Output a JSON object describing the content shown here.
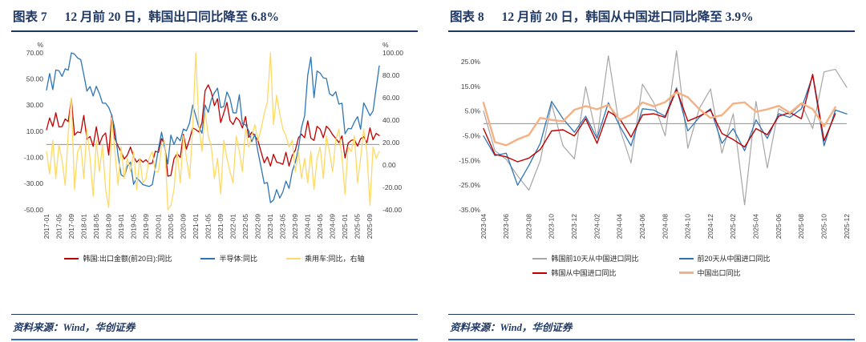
{
  "theme": {
    "title_color": "#1F3864",
    "rule_color": "#1F3864",
    "bottom_rule_color": "#2F6EB5"
  },
  "figures": [
    {
      "label": "图表 7",
      "title": "12 月前 20 日，韩国出口同比降至 6.8%",
      "source": "资料来源：Wind，华创证券"
    },
    {
      "label": "图表 8",
      "title": "12 月前 20 日，韩国从中国进口同比降至 3.9%",
      "source": "资料来源：Wind，华创证券"
    }
  ],
  "chart_data": [
    {
      "type": "line",
      "title": "12月前20日，韩国出口同比降至6.8%",
      "grid": false,
      "legend_position": "bottom",
      "ylabel_left": "%",
      "ylabel_right": "%",
      "ylim_left": [
        -50,
        70
      ],
      "yticks_left": [
        70,
        50,
        30,
        10,
        -10,
        -30,
        -50
      ],
      "ylim_right": [
        -40,
        100
      ],
      "yticks_right": [
        100,
        80,
        60,
        40,
        20,
        0,
        -20,
        -40
      ],
      "ytick_format": "2dp",
      "x_tick_step": 4,
      "x_tick_labels": [
        "2017-01",
        "2017-05",
        "2017-09",
        "2018-01",
        "2018-05",
        "2018-09",
        "2019-01",
        "2019-05",
        "2019-09",
        "2020-01",
        "2020-05",
        "2020-09",
        "2021-01",
        "2021-05",
        "2021-09",
        "2022-01",
        "2022-05",
        "2022-09",
        "2023-01",
        "2023-05",
        "2023-09",
        "2024-01",
        "2024-05",
        "2024-09",
        "2025-01",
        "2025-05",
        "2025-09"
      ],
      "series": [
        {
          "name": "韩国:出口金额(前20日):同比",
          "color": "#C00000",
          "axis": "left",
          "width": 1.3,
          "values": [
            11.2,
            20.2,
            13.7,
            24.2,
            13.4,
            13.7,
            19.5,
            17.4,
            35.0,
            7.1,
            9.6,
            8.9,
            22.2,
            4.0,
            6.1,
            -1.5,
            13.5,
            -0.1,
            6.2,
            8.7,
            -8.2,
            22.7,
            4.5,
            -1.2,
            -5.8,
            -11.1,
            -8.2,
            -2.0,
            -9.4,
            -13.5,
            -11.0,
            -13.6,
            -11.7,
            -14.7,
            -14.3,
            -5.2,
            -6.1,
            4.5,
            -0.2,
            -24.3,
            -23.7,
            -10.9,
            -7.0,
            -9.9,
            7.7,
            -3.6,
            4.0,
            12.6,
            11.4,
            9.5,
            16.6,
            41.1,
            45.6,
            39.8,
            29.6,
            34.9,
            16.7,
            24.0,
            32.1,
            18.3,
            15.2,
            20.6,
            18.2,
            12.6,
            21.3,
            5.4,
            9.4,
            6.6,
            2.8,
            -5.7,
            -14.0,
            -9.5,
            -16.6,
            -7.5,
            -13.6,
            -14.2,
            -15.2,
            -6.0,
            -16.5,
            -8.4,
            -4.4,
            5.1,
            7.8,
            5.1,
            18.0,
            4.8,
            3.1,
            13.8,
            11.7,
            5.1,
            13.9,
            11.4,
            7.5,
            4.6,
            1.4,
            6.6,
            -10.3,
            1.0,
            3.1,
            3.7,
            -1.3,
            4.3,
            5.9,
            1.3,
            12.7,
            3.6,
            8.4,
            6.8
          ]
        },
        {
          "name": "半导体:同比",
          "color": "#2E75B6",
          "axis": "left",
          "width": 1.3,
          "values": [
            41.6,
            54.2,
            41.9,
            56.9,
            56.4,
            52.0,
            57.8,
            56.8,
            70.0,
            69.1,
            66.1,
            64.8,
            53.4,
            40.8,
            44.2,
            37.0,
            44.5,
            39.0,
            31.6,
            31.5,
            28.3,
            22.2,
            11.6,
            -8.3,
            -23.3,
            -24.8,
            -16.6,
            -13.5,
            -30.5,
            -25.5,
            -28.1,
            -30.7,
            -31.5,
            -32.1,
            -30.8,
            -17.7,
            -3.4,
            9.4,
            -2.7,
            -14.9,
            7.1,
            0.0,
            5.6,
            2.8,
            11.8,
            10.4,
            16.4,
            30.0,
            21.7,
            13.2,
            8.6,
            30.2,
            24.5,
            34.4,
            39.6,
            43.0,
            28.2,
            28.9,
            40.1,
            35.1,
            24.2,
            24.0,
            38.0,
            15.8,
            15.0,
            10.7,
            2.1,
            7.8,
            -5.7,
            -17.4,
            -29.8,
            -29.1,
            -44.5,
            -42.5,
            -34.5,
            -41.0,
            -36.2,
            -28.0,
            -33.6,
            -20.6,
            -13.6,
            -3.1,
            12.9,
            21.8,
            53.0,
            66.7,
            35.7,
            56.1,
            54.5,
            50.9,
            50.4,
            38.8,
            37.1,
            40.3,
            30.8,
            31.5,
            8.1,
            12.2,
            11.9,
            17.2,
            21.2,
            11.6,
            31.8,
            27.1,
            22.0,
            25.4,
            42.9,
            60.0
          ]
        },
        {
          "name": "乘用车:同比，右轴",
          "color": "#FFD966",
          "axis": "right",
          "width": 1.3,
          "values": [
            12,
            -8,
            22,
            -12,
            18,
            4,
            -18,
            28,
            60,
            -22,
            12,
            18,
            -12,
            32,
            6,
            -28,
            22,
            -6,
            18,
            -22,
            -38,
            42,
            12,
            -18,
            16,
            -12,
            6,
            -6,
            12,
            -22,
            6,
            -16,
            -12,
            6,
            12,
            -6,
            -6,
            16,
            22,
            -40,
            -36,
            -22,
            12,
            -16,
            26,
            6,
            -12,
            32,
            100,
            36,
            12,
            48,
            26,
            16,
            -12,
            6,
            -26,
            22,
            6,
            -6,
            -16,
            26,
            12,
            -6,
            32,
            16,
            26,
            36,
            22,
            32,
            46,
            56,
            100,
            36,
            62,
            46,
            32,
            26,
            16,
            22,
            -6,
            12,
            -12,
            6,
            -16,
            12,
            -22,
            6,
            16,
            -12,
            26,
            12,
            -6,
            22,
            32,
            6,
            -26,
            16,
            12,
            26,
            -16,
            6,
            32,
            12,
            -36,
            16,
            6,
            12
          ]
        }
      ]
    },
    {
      "type": "line",
      "title": "12月前20日，韩国从中国进口同比降至3.9%",
      "grid": false,
      "legend_position": "bottom",
      "ylim_left": [
        -35,
        30
      ],
      "yticks_left": [
        25,
        15,
        5,
        -5,
        -15,
        -25,
        -35
      ],
      "ytick_format": "pct1",
      "x_tick_step": 2,
      "x_tick_labels": [
        "2023-04",
        "2023-06",
        "2023-08",
        "2023-10",
        "2023-12",
        "2024-02",
        "2024-04",
        "2024-06",
        "2024-08",
        "2024-10",
        "2024-12",
        "2025-02",
        "2025-04",
        "2025-06",
        "2025-08",
        "2025-10",
        "2025-12"
      ],
      "series": [
        {
          "name": "韩国前10天从中国进口同比",
          "color": "#A6A6A6",
          "axis": "left",
          "width": 1.2,
          "values": [
            5.1,
            -11.0,
            -14.5,
            -21.2,
            -27.0,
            -15.0,
            8.0,
            -9.0,
            -14.3,
            15.0,
            -6.0,
            27.5,
            -2.0,
            -16.0,
            16.0,
            8.5,
            -5.0,
            29.5,
            -10.0,
            6.0,
            14.0,
            -12.0,
            4.0,
            -33.0,
            9.0,
            -18.0,
            6.0,
            3.5,
            8.0,
            -2.0,
            21.0,
            22.0,
            14.7
          ]
        },
        {
          "name": "前20天从中国进口同比",
          "color": "#2E75B6",
          "axis": "left",
          "width": 1.3,
          "values": [
            -5.0,
            -13.0,
            -12.0,
            -25.0,
            -17.0,
            -8.0,
            9.0,
            2.0,
            -3.5,
            3.0,
            -6.0,
            8.5,
            -1.0,
            -9.0,
            6.0,
            5.5,
            3.0,
            14.5,
            -3.0,
            2.5,
            6.0,
            -8.0,
            -2.0,
            -11.0,
            1.5,
            -6.0,
            4.0,
            2.5,
            6.0,
            19.5,
            -9.0,
            5.5,
            3.9
          ]
        },
        {
          "name": "韩国从中国进口同比",
          "color": "#C00000",
          "axis": "left",
          "width": 1.4,
          "values": [
            -2.0,
            -12.5,
            -13.5,
            -15.5,
            -14.0,
            -10.5,
            -3.0,
            -2.5,
            -5.0,
            2.0,
            -8.0,
            5.0,
            2.0,
            -5.5,
            3.5,
            4.0,
            2.5,
            13.8,
            1.0,
            3.0,
            5.5,
            -4.0,
            -6.5,
            -9.5,
            -2.0,
            -4.5,
            3.0,
            4.5,
            2.0,
            20.0,
            -7.0,
            4.0,
            null
          ]
        },
        {
          "name": "中国出口同比",
          "color": "#F4B183",
          "axis": "left",
          "width": 2.4,
          "values": [
            8.5,
            -7.5,
            -8.8,
            -6.4,
            -4.6,
            2.3,
            1.5,
            0.9,
            5.6,
            7.1,
            5.8,
            7.6,
            1.5,
            3.6,
            8.6,
            7.0,
            8.7,
            12.7,
            10.7,
            5.9,
            2.3,
            3.4,
            8.1,
            8.6,
            4.8,
            5.8,
            7.2,
            4.4,
            8.3,
            5.9,
            -1.1,
            6.7,
            null
          ]
        }
      ]
    }
  ]
}
